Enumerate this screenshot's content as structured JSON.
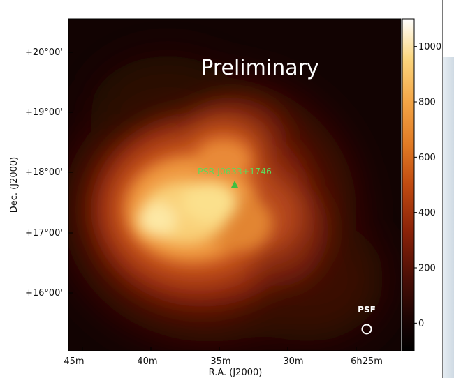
{
  "chart_data": {
    "type": "heatmap",
    "title": "",
    "xlabel": "R.A. (J2000)",
    "ylabel": "Dec. (J2000)",
    "x_ticks": [
      "45m",
      "40m",
      "35m",
      "30m",
      "6h25m"
    ],
    "y_ticks": [
      "+20°00'",
      "+19°00'",
      "+18°00'",
      "+17°00'",
      "+16°00'"
    ],
    "colorbar": {
      "ticks": [
        "1000",
        "800",
        "600",
        "400",
        "200",
        "0"
      ],
      "tick_values": [
        1000,
        800,
        600,
        400,
        200,
        0
      ],
      "range": [
        -100,
        1100
      ],
      "colormap": [
        "#000000",
        "#2a0604",
        "#6a1608",
        "#a8320a",
        "#d9621a",
        "#f3a546",
        "#fbe08c",
        "#ffffff"
      ]
    },
    "source_marker": {
      "label": "PSR J0633+1746",
      "shape": "triangle",
      "color": "#3fbf3f"
    },
    "psf_label": "PSF",
    "overlay_text": "Preliminary"
  }
}
